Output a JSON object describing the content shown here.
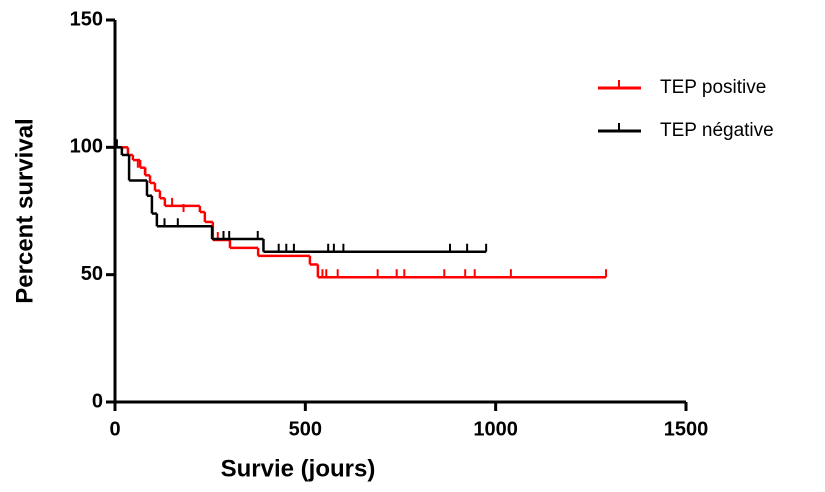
{
  "chart_data": {
    "type": "survival",
    "x_label": "Survie (jours)",
    "y_label": "Percent survival",
    "xlim": [
      0,
      1500
    ],
    "ylim": [
      0,
      150
    ],
    "xticks": [
      0,
      500,
      1000,
      1500
    ],
    "yticks": [
      0,
      50,
      100,
      150
    ],
    "legend_position": "upper right",
    "series": [
      {
        "name": "TEP positive",
        "color": "#ff0000",
        "x": [
          0,
          34,
          47,
          66,
          79,
          92,
          105,
          118,
          131,
          223,
          236,
          257,
          302,
          376,
          512,
          533
        ],
        "values": [
          100,
          97,
          95,
          92,
          89,
          86,
          83,
          80,
          77,
          74.6,
          70.7,
          63.6,
          60.5,
          57.4,
          54,
          49
        ],
        "censored": {
          "x": [
            60,
            80,
            150,
            180,
            270,
            545,
            555,
            585,
            690,
            740,
            760,
            865,
            920,
            945,
            1040,
            1290
          ],
          "values": [
            92,
            89,
            77,
            74.6,
            63.6,
            49,
            49,
            49,
            49,
            49,
            49,
            49,
            49,
            49,
            49,
            49
          ]
        }
      },
      {
        "name": "TEP négative",
        "color": "#000000",
        "x": [
          0,
          18,
          37,
          84,
          97,
          110,
          255,
          390
        ],
        "values": [
          100,
          97,
          87,
          81,
          74,
          69,
          64,
          59
        ],
        "censored": {
          "x": [
            5,
            130,
            165,
            285,
            300,
            375,
            430,
            450,
            470,
            560,
            575,
            600,
            880,
            925,
            975
          ],
          "values": [
            100,
            69,
            69,
            64,
            64,
            64,
            59,
            59,
            59,
            59,
            59,
            59,
            59,
            59,
            59
          ]
        }
      }
    ]
  }
}
